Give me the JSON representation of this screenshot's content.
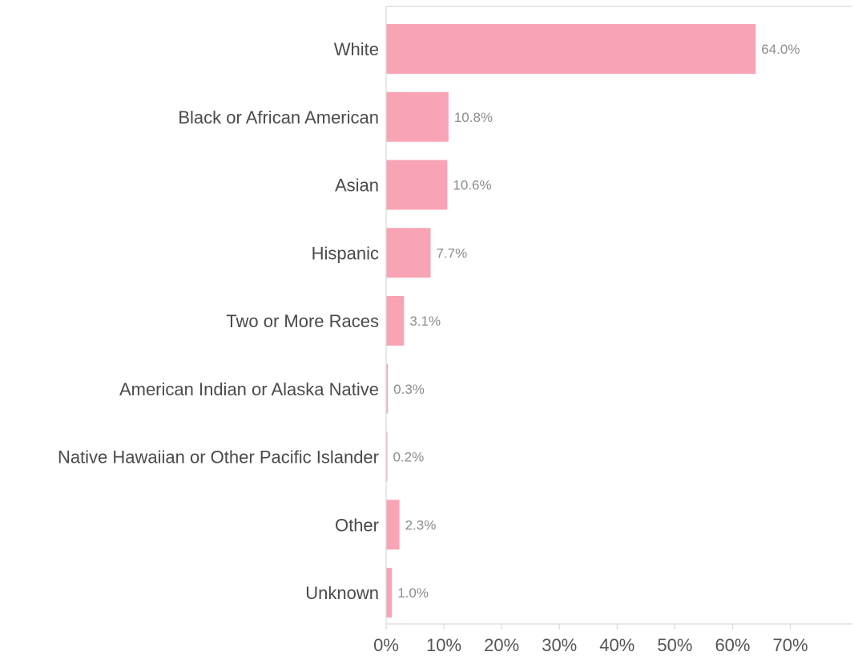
{
  "chart_data": {
    "type": "bar",
    "orientation": "horizontal",
    "categories": [
      "White",
      "Black or African American",
      "Asian",
      "Hispanic",
      "Two or More Races",
      "American Indian or Alaska Native",
      "Native Hawaiian or Other Pacific Islander",
      "Other",
      "Unknown"
    ],
    "values": [
      64.0,
      10.8,
      10.6,
      7.7,
      3.1,
      0.3,
      0.2,
      2.3,
      1.0
    ],
    "value_labels": [
      "64.0%",
      "10.8%",
      "10.6%",
      "7.7%",
      "3.1%",
      "0.3%",
      "0.2%",
      "2.3%",
      "1.0%"
    ],
    "x_ticks": [
      0,
      10,
      20,
      30,
      40,
      50,
      60,
      70
    ],
    "x_tick_labels": [
      "0%",
      "10%",
      "20%",
      "30%",
      "40%",
      "50%",
      "60%",
      "70%"
    ],
    "xlim": [
      0,
      77
    ],
    "title": "",
    "xlabel": "",
    "ylabel": "",
    "grid": false,
    "legend": "none",
    "bar_color": "#f9a4b5"
  }
}
